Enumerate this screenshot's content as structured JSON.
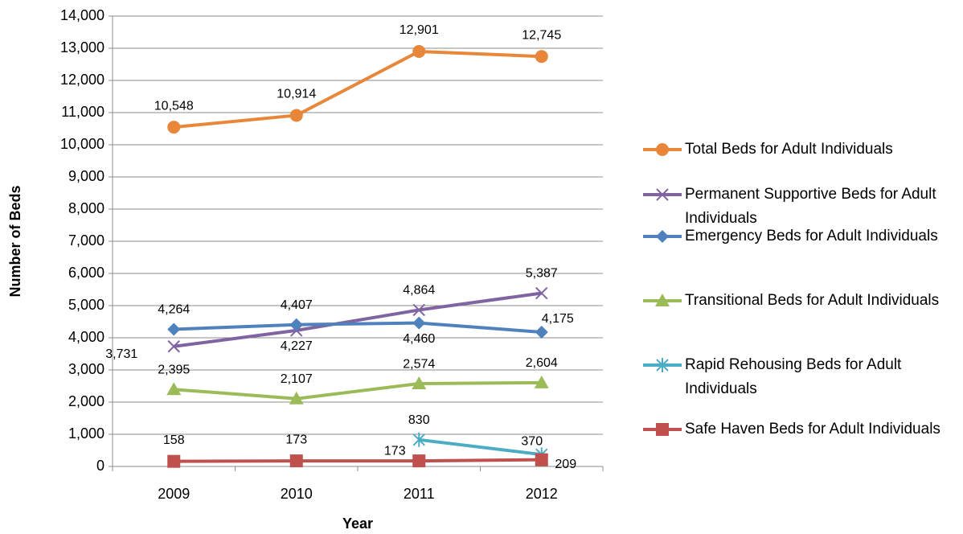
{
  "chart_data": {
    "type": "line",
    "x_label": "Year",
    "y_label": "Number of Beds",
    "categories": [
      "2009",
      "2010",
      "2011",
      "2012"
    ],
    "ylim": [
      0,
      14000
    ],
    "yticks": [
      0,
      {
        "value": 1000,
        "label": "1,000"
      },
      {
        "value": 2000,
        "label": "2,000"
      },
      {
        "value": 3000,
        "label": "3,000"
      },
      {
        "value": 4000,
        "label": "4,000"
      },
      {
        "value": 5000,
        "label": "5,000"
      },
      {
        "value": 6000,
        "label": "6,000"
      },
      {
        "value": 7000,
        "label": "7,000"
      },
      {
        "value": 8000,
        "label": "8,000"
      },
      {
        "value": 9000,
        "label": "9,000"
      },
      {
        "value": 10000,
        "label": "10,000"
      },
      {
        "value": 11000,
        "label": "11,000"
      },
      {
        "value": 12000,
        "label": "12,000"
      },
      {
        "value": 13000,
        "label": "13,000"
      },
      {
        "value": 14000,
        "label": "14,000"
      }
    ],
    "grid": true,
    "legend": "right",
    "series": [
      {
        "name": "Total Beds for Adult Individuals",
        "color": "#e8873a",
        "marker": "circle",
        "values": [
          10548,
          10914,
          12901,
          12745
        ],
        "value_labels": [
          "10,548",
          "10,914",
          "12,901",
          "12,745"
        ]
      },
      {
        "name": "Permanent Supportive Beds for Adult Individuals",
        "color": "#8064a2",
        "marker": "x",
        "values": [
          3731,
          4227,
          4864,
          5387
        ],
        "value_labels": [
          "3,731",
          "4,227",
          "4,864",
          "5,387"
        ]
      },
      {
        "name": "Emergency Beds for Adult Individuals",
        "color": "#4f81bd",
        "marker": "diamond",
        "values": [
          4264,
          4407,
          4460,
          4175
        ],
        "value_labels": [
          "4,264",
          "4,407",
          "4,460",
          "4,175"
        ]
      },
      {
        "name": "Transitional Beds for Adult Individuals",
        "color": "#9bbb59",
        "marker": "triangle",
        "values": [
          2395,
          2107,
          2574,
          2604
        ],
        "value_labels": [
          "2,395",
          "2,107",
          "2,574",
          "2,604"
        ]
      },
      {
        "name": "Rapid Rehousing Beds for Adult Individuals",
        "color": "#4bacc6",
        "marker": "asterisk",
        "values": [
          null,
          null,
          830,
          370
        ]
      },
      {
        "name": "Safe Haven Beds for Adult Individuals",
        "color": "#c0504d",
        "marker": "square",
        "values": [
          158,
          173,
          173,
          209
        ]
      }
    ]
  }
}
